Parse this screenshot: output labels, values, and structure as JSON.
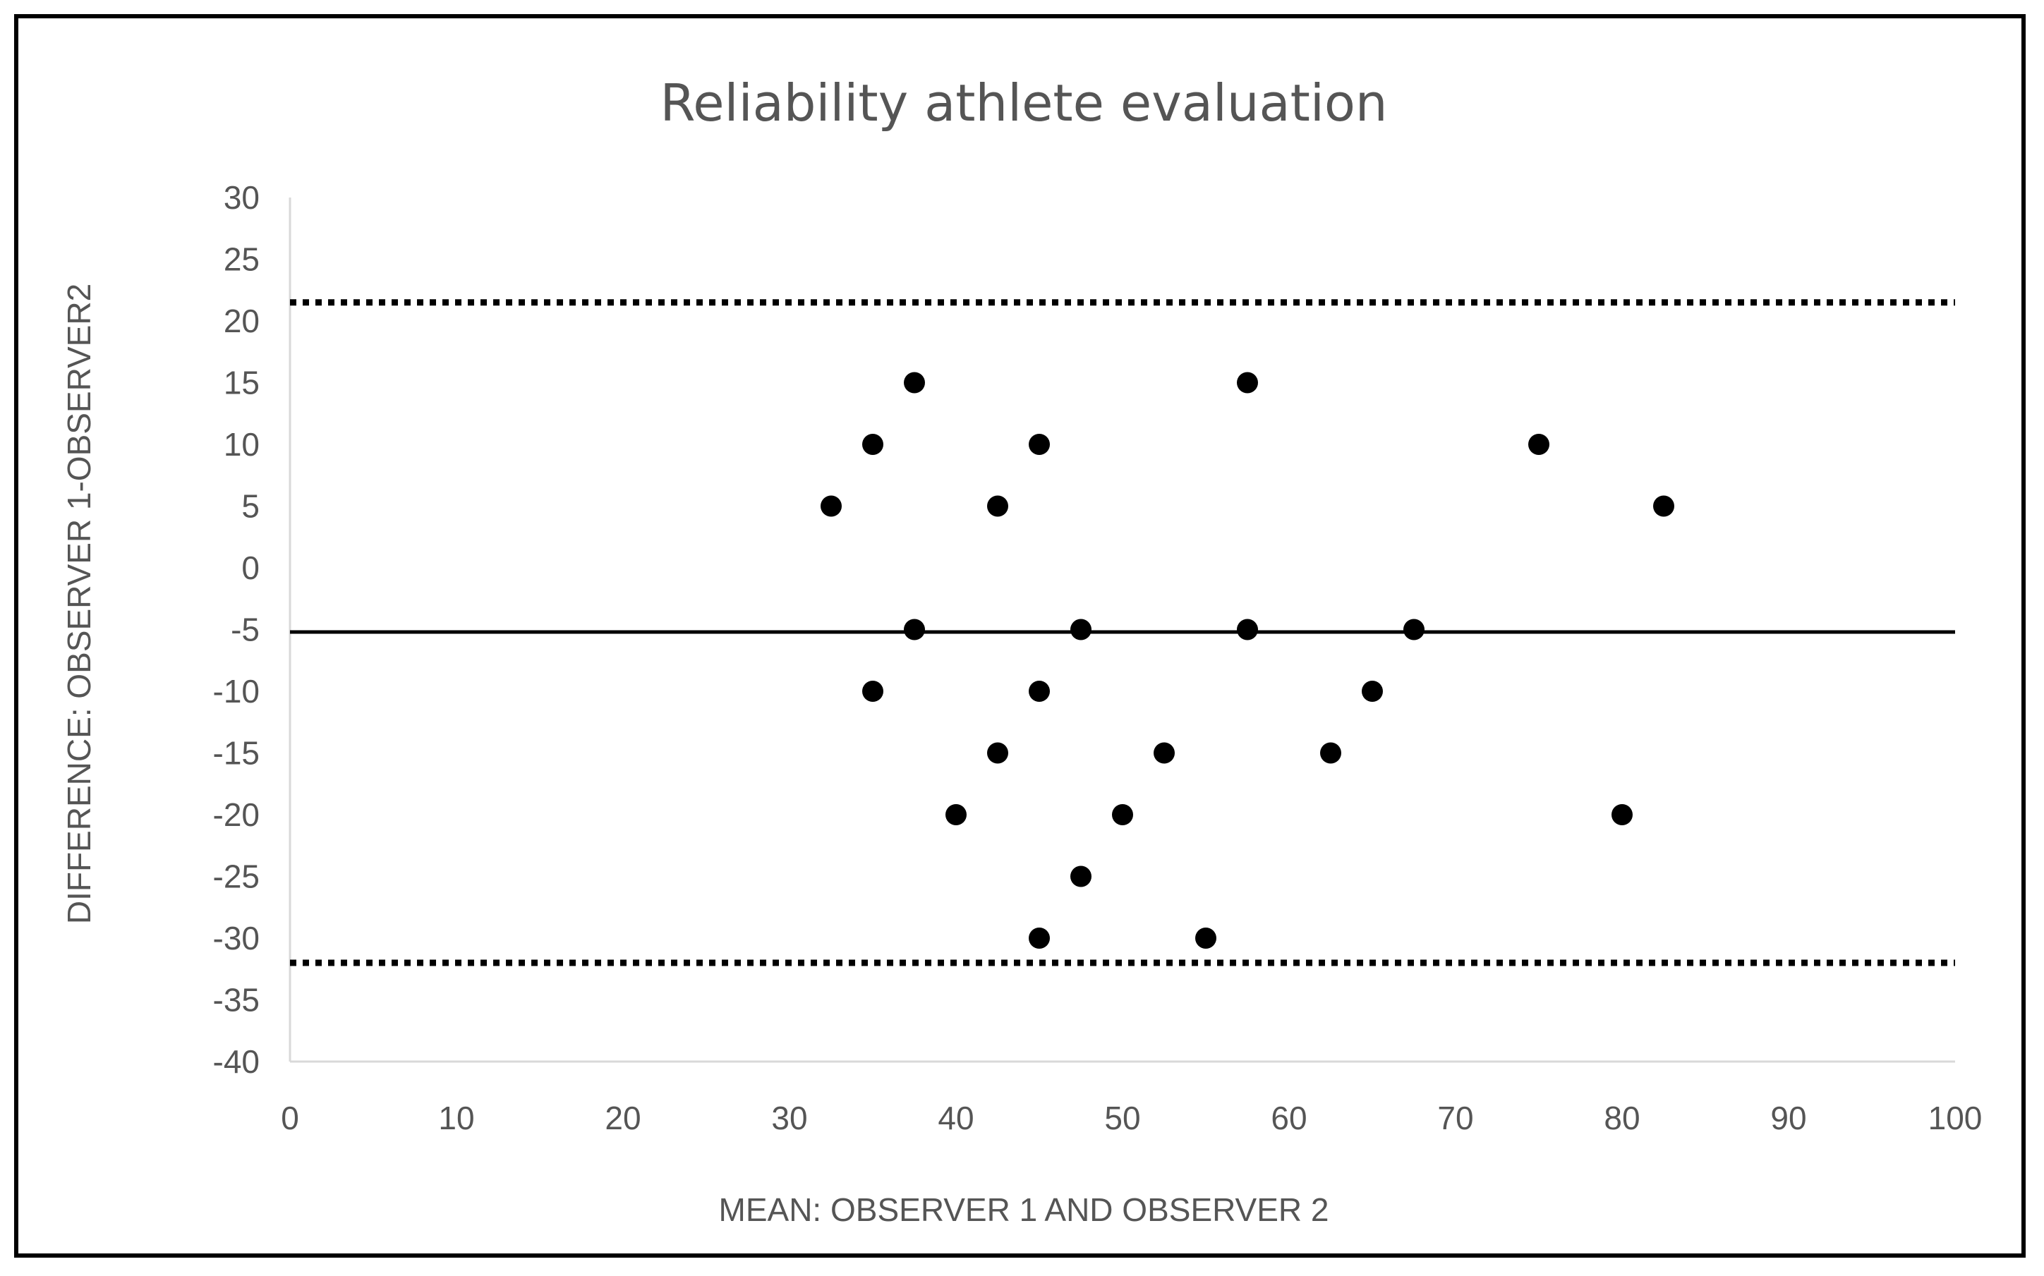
{
  "chart_data": {
    "type": "scatter",
    "title": "Reliability athlete evaluation",
    "xlabel": "MEAN: OBSERVER 1 AND OBSERVER 2",
    "ylabel": "DIFFERENCE: OBSERVER 1-OBSERVER2",
    "xlim": [
      0,
      100
    ],
    "ylim": [
      -40,
      30
    ],
    "x_ticks": [
      0,
      10,
      20,
      30,
      40,
      50,
      60,
      70,
      80,
      90,
      100
    ],
    "y_ticks": [
      30,
      25,
      20,
      15,
      10,
      5,
      0,
      -5,
      -10,
      -15,
      -20,
      -25,
      -30,
      -35,
      -40
    ],
    "grid": false,
    "reference_lines": [
      {
        "name": "upper limit of agreement",
        "y": 21.5,
        "style": "dotted"
      },
      {
        "name": "mean difference",
        "y": -5.2,
        "style": "solid"
      },
      {
        "name": "lower limit of agreement",
        "y": -32,
        "style": "dotted"
      }
    ],
    "series": [
      {
        "name": "observations",
        "points": [
          {
            "x": 32.5,
            "y": 5
          },
          {
            "x": 35,
            "y": 10
          },
          {
            "x": 37.5,
            "y": 15
          },
          {
            "x": 42.5,
            "y": 5
          },
          {
            "x": 45,
            "y": 10
          },
          {
            "x": 57.5,
            "y": 15
          },
          {
            "x": 75,
            "y": 10
          },
          {
            "x": 82.5,
            "y": 5
          },
          {
            "x": 37.5,
            "y": -5
          },
          {
            "x": 47.5,
            "y": -5
          },
          {
            "x": 57.5,
            "y": -5
          },
          {
            "x": 67.5,
            "y": -5
          },
          {
            "x": 35,
            "y": -10
          },
          {
            "x": 45,
            "y": -10
          },
          {
            "x": 65,
            "y": -10
          },
          {
            "x": 42.5,
            "y": -15
          },
          {
            "x": 52.5,
            "y": -15
          },
          {
            "x": 62.5,
            "y": -15
          },
          {
            "x": 40,
            "y": -20
          },
          {
            "x": 50,
            "y": -20
          },
          {
            "x": 80,
            "y": -20
          },
          {
            "x": 47.5,
            "y": -25
          },
          {
            "x": 45,
            "y": -30
          },
          {
            "x": 55,
            "y": -30
          }
        ]
      }
    ]
  }
}
